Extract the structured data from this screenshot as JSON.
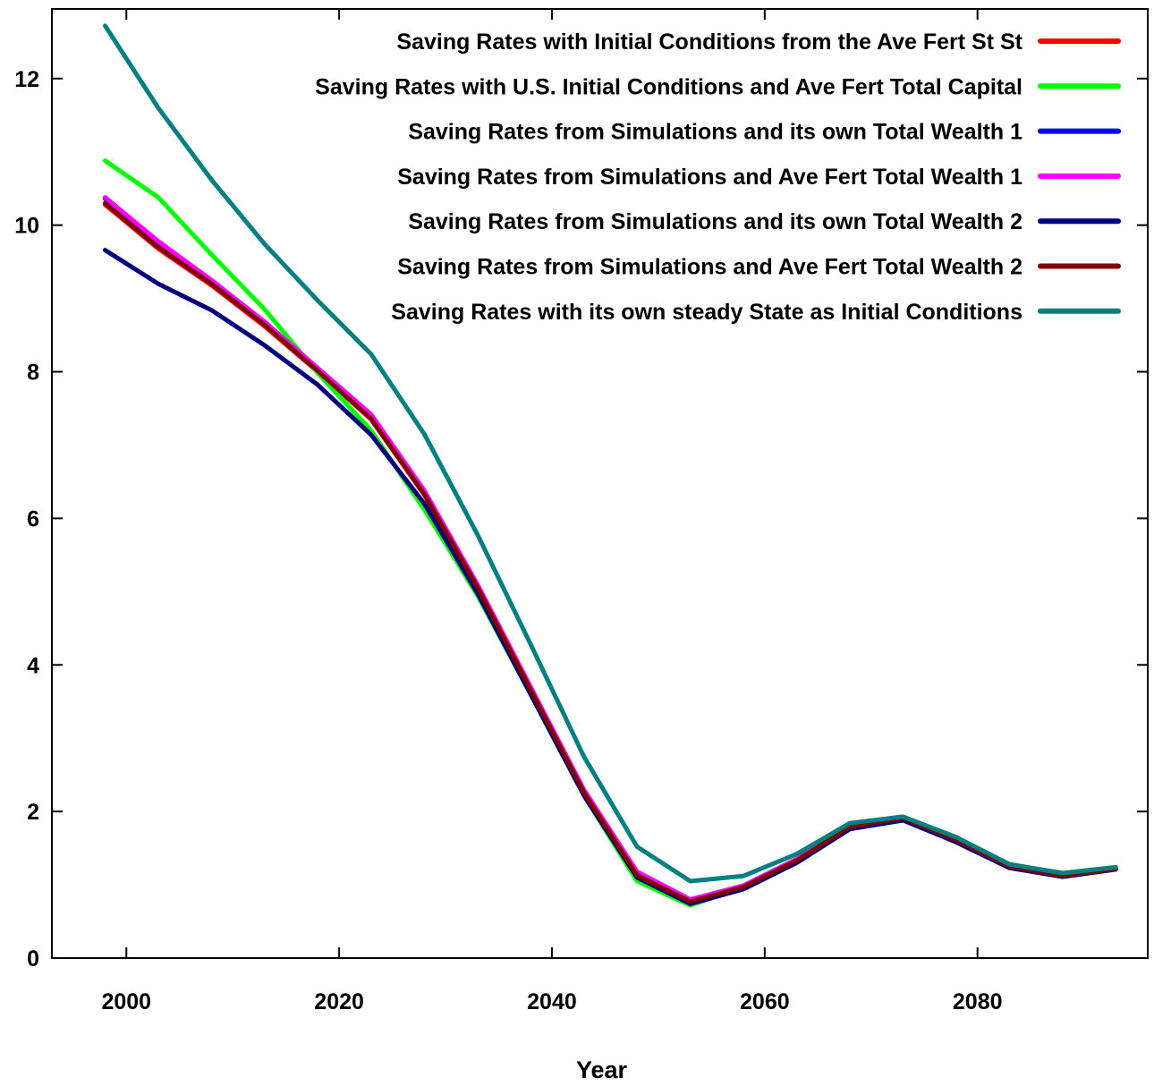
{
  "chart_data": {
    "type": "line",
    "title": "",
    "xlabel": "Year",
    "ylabel": "",
    "xlim": [
      1993,
      2096
    ],
    "ylim": [
      0,
      12.95
    ],
    "xticks": [
      2000,
      2020,
      2040,
      2060,
      2080
    ],
    "yticks": [
      0,
      2,
      4,
      6,
      8,
      10,
      12
    ],
    "xtick_labels": [
      "2000",
      "2020",
      "2040",
      "2060",
      "2080"
    ],
    "ytick_labels": [
      "0",
      "2",
      "4",
      "6",
      "8",
      "10",
      "12"
    ],
    "grid": false,
    "legend_position": "top-right",
    "x": [
      1998,
      2003,
      2008,
      2013,
      2018,
      2023,
      2028,
      2033,
      2038,
      2043,
      2048,
      2053,
      2058,
      2063,
      2068,
      2073,
      2078,
      2083,
      2088,
      2093
    ],
    "series": [
      {
        "name": "Saving Rates with Initial Conditions from the Ave Fert St St",
        "color": "#ff0000",
        "values": [
          10.28,
          9.68,
          9.18,
          8.62,
          8.0,
          7.35,
          6.32,
          5.05,
          3.65,
          2.25,
          1.12,
          0.76,
          0.97,
          1.32,
          1.78,
          1.9,
          1.6,
          1.25,
          1.12,
          1.22
        ]
      },
      {
        "name": "Saving Rates with U.S. Initial Conditions and Ave Fert Total Capital",
        "color": "#00ff00",
        "values": [
          10.88,
          10.38,
          9.6,
          8.85,
          7.98,
          7.2,
          6.12,
          4.95,
          3.6,
          2.22,
          1.05,
          0.72,
          0.96,
          1.3,
          1.76,
          1.9,
          1.6,
          1.24,
          1.12,
          1.22
        ]
      },
      {
        "name": "Saving Rates from Simulations and its own Total Wealth 1",
        "color": "#0000ff",
        "values": [
          10.36,
          9.75,
          9.22,
          8.66,
          8.02,
          7.38,
          6.35,
          5.08,
          3.68,
          2.28,
          1.15,
          0.78,
          0.98,
          1.34,
          1.8,
          1.92,
          1.62,
          1.26,
          1.13,
          1.22
        ]
      },
      {
        "name": "Saving Rates from Simulations and Ave Fert Total Wealth 1",
        "color": "#ff00ff",
        "values": [
          10.38,
          9.78,
          9.25,
          8.68,
          8.05,
          7.42,
          6.38,
          5.1,
          3.7,
          2.3,
          1.18,
          0.8,
          0.99,
          1.35,
          1.81,
          1.92,
          1.62,
          1.26,
          1.13,
          1.22
        ]
      },
      {
        "name": "Saving Rates from Simulations and its own Total Wealth 2",
        "color": "#000080",
        "values": [
          9.66,
          9.2,
          8.84,
          8.36,
          7.82,
          7.14,
          6.2,
          4.98,
          3.6,
          2.22,
          1.1,
          0.74,
          0.94,
          1.3,
          1.76,
          1.88,
          1.58,
          1.23,
          1.11,
          1.21
        ]
      },
      {
        "name": "Saving Rates from Simulations and Ave Fert Total Wealth 2",
        "color": "#800000",
        "values": [
          10.3,
          9.7,
          9.2,
          8.64,
          8.01,
          7.36,
          6.33,
          5.06,
          3.66,
          2.26,
          1.13,
          0.77,
          0.97,
          1.33,
          1.79,
          1.91,
          1.61,
          1.25,
          1.12,
          1.22
        ]
      },
      {
        "name": "Saving Rates with its own steady State as Initial Conditions",
        "color": "#008080",
        "values": [
          12.72,
          11.6,
          10.62,
          9.74,
          8.97,
          8.24,
          7.15,
          5.78,
          4.28,
          2.75,
          1.52,
          1.05,
          1.12,
          1.42,
          1.84,
          1.93,
          1.65,
          1.28,
          1.16,
          1.24
        ]
      }
    ]
  }
}
